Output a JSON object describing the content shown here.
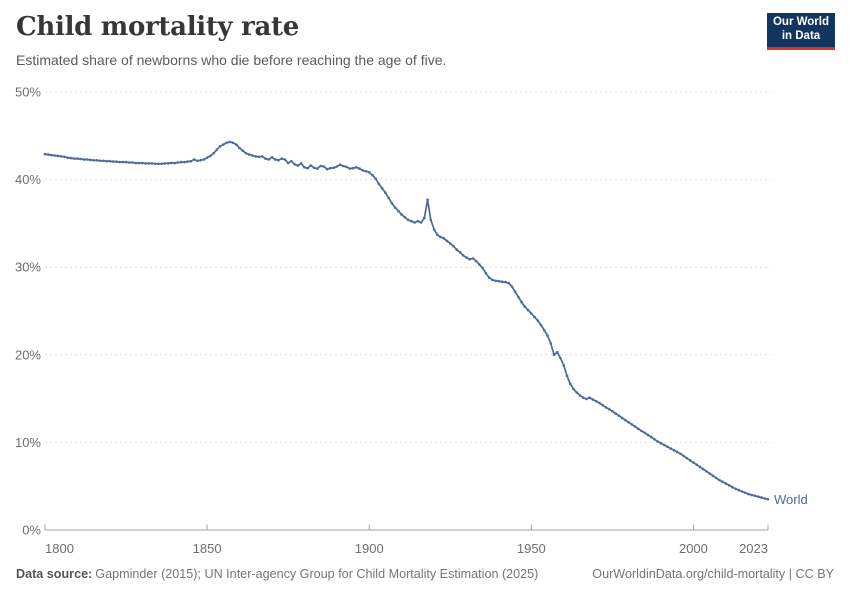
{
  "header": {
    "title": "Child mortality rate",
    "subtitle": "Estimated share of newborns who die before reaching the age of five.",
    "logo": {
      "line1": "Our World",
      "line2": "in Data"
    }
  },
  "chart_data": {
    "type": "line",
    "title": "Child mortality rate",
    "xlabel": "",
    "ylabel": "",
    "xlim": [
      1800,
      2023
    ],
    "ylim": [
      0,
      50
    ],
    "x_ticks": [
      1800,
      1850,
      1900,
      1950,
      2000,
      2023
    ],
    "y_ticks": [
      0,
      10,
      20,
      30,
      40,
      50
    ],
    "y_suffix": "%",
    "grid": "horizontal-dashed",
    "legend_position": "end-of-line",
    "end_label": "World",
    "series": [
      {
        "name": "World",
        "color": "#4c6a9c",
        "x_start": 1800,
        "x_step": 1,
        "values": [
          42.9,
          42.85,
          42.8,
          42.75,
          42.7,
          42.65,
          42.6,
          42.5,
          42.45,
          42.4,
          42.4,
          42.35,
          42.3,
          42.3,
          42.25,
          42.2,
          42.2,
          42.15,
          42.15,
          42.1,
          42.1,
          42.05,
          42.05,
          42.0,
          42.0,
          42.0,
          41.95,
          41.95,
          41.9,
          41.9,
          41.9,
          41.85,
          41.85,
          41.85,
          41.8,
          41.8,
          41.8,
          41.85,
          41.85,
          41.9,
          41.9,
          41.95,
          42.0,
          42.0,
          42.05,
          42.1,
          42.3,
          42.15,
          42.2,
          42.3,
          42.5,
          42.7,
          43.0,
          43.4,
          43.8,
          44.0,
          44.2,
          44.3,
          44.2,
          44.0,
          43.6,
          43.3,
          43.0,
          42.85,
          42.75,
          42.65,
          42.6,
          42.65,
          42.4,
          42.3,
          42.55,
          42.3,
          42.2,
          42.4,
          42.3,
          41.9,
          42.1,
          41.75,
          41.6,
          41.85,
          41.4,
          41.3,
          41.6,
          41.35,
          41.25,
          41.55,
          41.5,
          41.2,
          41.3,
          41.35,
          41.5,
          41.7,
          41.55,
          41.45,
          41.25,
          41.3,
          41.4,
          41.25,
          41.05,
          40.95,
          40.85,
          40.5,
          40.1,
          39.5,
          39.0,
          38.5,
          37.9,
          37.3,
          36.8,
          36.4,
          36.0,
          35.7,
          35.4,
          35.25,
          35.1,
          35.25,
          35.1,
          35.6,
          37.7,
          35.4,
          34.3,
          33.7,
          33.45,
          33.3,
          33.0,
          32.7,
          32.4,
          32.0,
          31.7,
          31.35,
          31.1,
          30.9,
          31.0,
          30.7,
          30.3,
          29.9,
          29.3,
          28.8,
          28.55,
          28.45,
          28.4,
          28.35,
          28.3,
          28.2,
          27.8,
          27.2,
          26.6,
          26.0,
          25.5,
          25.1,
          24.7,
          24.3,
          23.9,
          23.4,
          22.8,
          22.2,
          21.3,
          20.0,
          20.3,
          19.6,
          18.8,
          17.6,
          16.7,
          16.1,
          15.7,
          15.35,
          15.1,
          14.95,
          15.1,
          14.9,
          14.7,
          14.5,
          14.25,
          14.0,
          13.8,
          13.55,
          13.3,
          13.05,
          12.8,
          12.55,
          12.3,
          12.05,
          11.8,
          11.55,
          11.3,
          11.1,
          10.85,
          10.6,
          10.35,
          10.1,
          9.9,
          9.7,
          9.5,
          9.3,
          9.1,
          8.9,
          8.7,
          8.45,
          8.2,
          7.95,
          7.7,
          7.45,
          7.2,
          6.95,
          6.7,
          6.45,
          6.2,
          5.95,
          5.7,
          5.5,
          5.3,
          5.1,
          4.9,
          4.7,
          4.55,
          4.4,
          4.25,
          4.1,
          4.0,
          3.9,
          3.8,
          3.7,
          3.6,
          3.5
        ]
      }
    ]
  },
  "colors": {
    "accent_line": "#4c6a9c",
    "grid": "#dddddd",
    "axis": "#a3a3a3",
    "tick_label": "#6e6e6e",
    "title": "#373737",
    "subtitle": "#5b5b5b",
    "footer": "#757575",
    "footer_bold": "#555555",
    "logo_bg": "#12355f",
    "logo_accent": "#d8352a"
  },
  "footer": {
    "source_label": "Data source:",
    "source_text": "Gapminder (2015); UN Inter-agency Group for Child Mortality Estimation (2025)",
    "credit_text": "OurWorldinData.org/child-mortality | CC BY"
  }
}
